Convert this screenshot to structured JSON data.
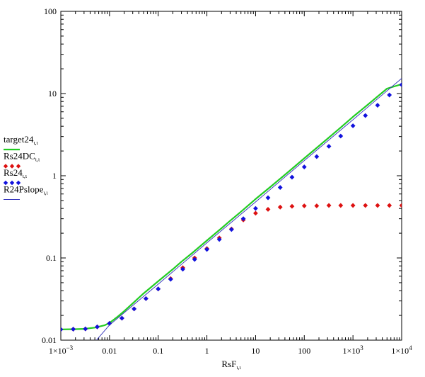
{
  "chart_data": {
    "type": "line",
    "xlabel": "RsF",
    "xlabel_sub": "ι,ι",
    "x_scale": "log",
    "y_scale": "log",
    "xlim": [
      0.001,
      10000
    ],
    "ylim": [
      0.01,
      100
    ],
    "grid": false,
    "legend_position": "left",
    "x_tick_labels": [
      {
        "value": 0.001,
        "text": "1×10",
        "sup": "−3"
      },
      {
        "value": 0.01,
        "text": "0.01",
        "sup": ""
      },
      {
        "value": 0.1,
        "text": "0.1",
        "sup": ""
      },
      {
        "value": 1,
        "text": "1",
        "sup": ""
      },
      {
        "value": 10,
        "text": "10",
        "sup": ""
      },
      {
        "value": 100,
        "text": "100",
        "sup": ""
      },
      {
        "value": 1000,
        "text": "1×10",
        "sup": "3"
      },
      {
        "value": 10000,
        "text": "1×10",
        "sup": "4"
      }
    ],
    "y_tick_labels": [
      {
        "value": 0.01,
        "text": "0.01"
      },
      {
        "value": 0.1,
        "text": "0.1"
      },
      {
        "value": 1,
        "text": "1"
      },
      {
        "value": 10,
        "text": "10"
      },
      {
        "value": 100,
        "text": "100"
      }
    ],
    "series": [
      {
        "name": "target24",
        "name_sub": "ι,ι",
        "style": "line",
        "color": "#22cc22",
        "x": [
          0.001,
          0.002,
          0.003,
          0.005,
          0.008,
          0.01,
          0.015,
          0.02,
          0.03,
          0.05,
          0.1,
          0.2,
          0.3,
          0.5,
          1,
          2,
          3,
          5,
          10,
          20,
          50,
          100,
          200,
          500,
          1000,
          2000,
          5000,
          10000
        ],
        "y": [
          0.0135,
          0.0136,
          0.0137,
          0.0142,
          0.0152,
          0.0162,
          0.0195,
          0.0225,
          0.028,
          0.037,
          0.052,
          0.073,
          0.09,
          0.115,
          0.163,
          0.23,
          0.283,
          0.365,
          0.52,
          0.73,
          1.15,
          1.63,
          2.3,
          3.65,
          5.2,
          7.3,
          11.5,
          13.0
        ]
      },
      {
        "name": "Rs24DC",
        "name_sub": "ι,ι",
        "style": "markers",
        "color": "#dd1111",
        "x": [
          0.001,
          0.0018,
          0.0032,
          0.0056,
          0.01,
          0.018,
          0.032,
          0.056,
          0.1,
          0.18,
          0.32,
          0.56,
          1,
          1.8,
          3.2,
          5.6,
          10,
          18,
          32,
          56,
          100,
          180,
          320,
          560,
          1000,
          1800,
          3200,
          5600,
          10000
        ],
        "y": [
          0.0135,
          0.0136,
          0.0137,
          0.0145,
          0.016,
          0.0185,
          0.024,
          0.032,
          0.042,
          0.056,
          0.076,
          0.1,
          0.13,
          0.175,
          0.225,
          0.29,
          0.35,
          0.39,
          0.415,
          0.425,
          0.43,
          0.43,
          0.435,
          0.435,
          0.435,
          0.435,
          0.435,
          0.435,
          0.435
        ]
      },
      {
        "name": "Rs24",
        "name_sub": "ι,ι",
        "style": "markers",
        "color": "#1111dd",
        "x": [
          0.001,
          0.0018,
          0.0032,
          0.0056,
          0.01,
          0.018,
          0.032,
          0.056,
          0.1,
          0.18,
          0.32,
          0.56,
          1,
          1.8,
          3.2,
          5.6,
          10,
          18,
          32,
          56,
          100,
          180,
          320,
          560,
          1000,
          1800,
          3200,
          5600,
          10000
        ],
        "y": [
          0.0135,
          0.0136,
          0.0137,
          0.0145,
          0.016,
          0.0185,
          0.024,
          0.032,
          0.042,
          0.055,
          0.073,
          0.096,
          0.127,
          0.168,
          0.222,
          0.3,
          0.4,
          0.54,
          0.72,
          0.96,
          1.28,
          1.71,
          2.28,
          3.04,
          4.05,
          5.4,
          7.2,
          9.6,
          12.8
        ]
      },
      {
        "name": "R24Pslope",
        "name_sub": "ι,ι",
        "style": "thin-line",
        "color": "#3333bb",
        "x": [
          0.005,
          0.01,
          0.1,
          1,
          10,
          100,
          1000,
          10000
        ],
        "y": [
          0.0095,
          0.0153,
          0.048,
          0.153,
          0.48,
          1.53,
          4.8,
          15.3
        ]
      }
    ]
  }
}
